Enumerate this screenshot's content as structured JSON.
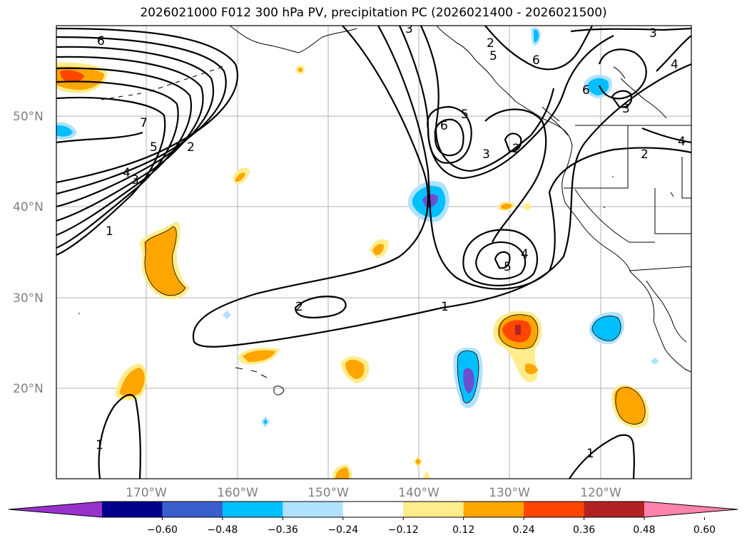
{
  "title": "2026021000 F012 300 hPa PV, precipitation PC (2026021400 - 2026021500)",
  "lat_labels": [
    "50°N",
    "40°N",
    "30°N",
    "20°N"
  ],
  "lon_labels": [
    "170°W",
    "160°W",
    "150°W",
    "140°W",
    "130°W",
    "120°W"
  ],
  "contour_labels": [
    "6",
    "7",
    "5",
    "4",
    "3",
    "2",
    "1",
    "3",
    "6",
    "5",
    "3",
    "2",
    "6",
    "2",
    "4",
    "5",
    "2",
    "1",
    "1",
    "1",
    "3",
    "4",
    "3",
    "6",
    "2",
    "4",
    "5"
  ],
  "colorbar": {
    "ticks": [
      "−0.60",
      "−0.48",
      "−0.36",
      "−0.24",
      "−0.12",
      "0.12",
      "0.24",
      "0.36",
      "0.48",
      "0.60"
    ],
    "colors": [
      "#9932cc",
      "#00008b",
      "#3a5fcd",
      "#00bfff",
      "#b0e2ff",
      "#ffffff",
      "#ffec8b",
      "#ffa500",
      "#ff4500",
      "#b22222",
      "#ff82ab"
    ]
  },
  "legend_colors": {
    "neg_strong": "#6a4fd0",
    "neg_mid": "#00bfff",
    "neg_weak": "#b0e2ff",
    "pos_weak": "#ffec8b",
    "pos_mid": "#ffa500",
    "pos_strong": "#ff4500",
    "pos_max": "#b22222"
  }
}
